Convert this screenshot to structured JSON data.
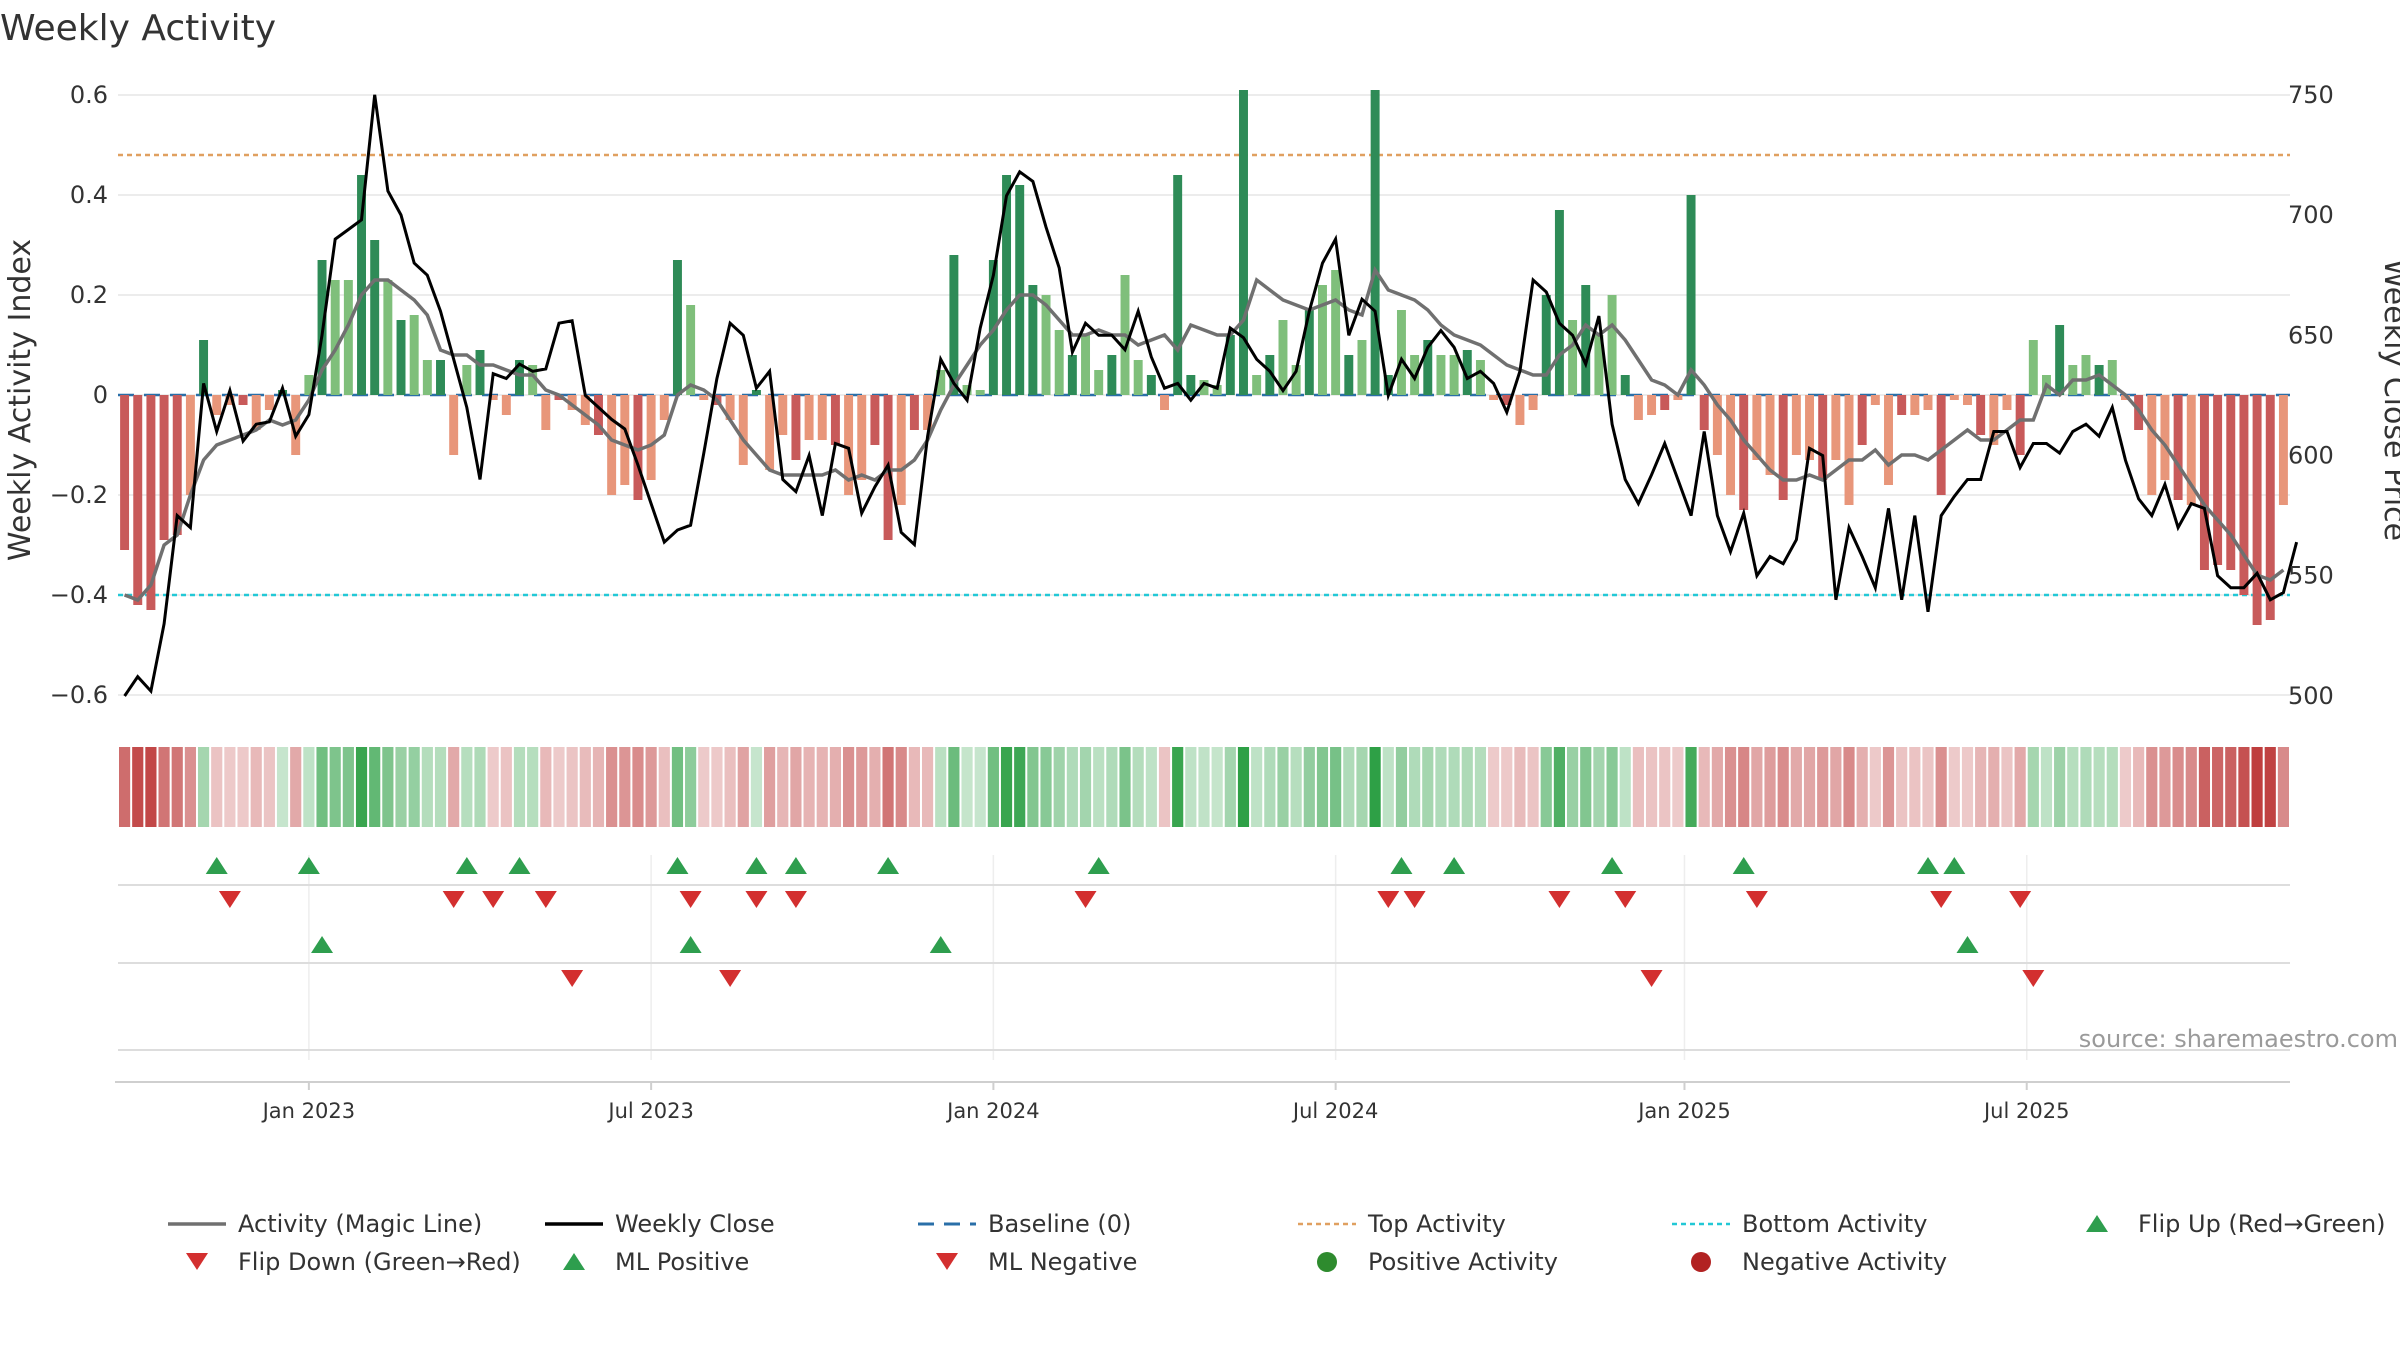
{
  "chart_data": {
    "type": "bar",
    "title": "Weekly Activity",
    "ylabel_left": "Weekly Activity Index",
    "ylabel_right": "Weekly Close Price",
    "source": "source: sharemaestro.com",
    "x_start": "2022-09-12",
    "x_end": "2025-10-13",
    "ylim_left": [
      -0.65,
      0.61
    ],
    "ylim_right": [
      490,
      752
    ],
    "yticks_left": [
      {
        "value": 0.6,
        "label": "0.6"
      },
      {
        "value": 0.4,
        "label": "0.4"
      },
      {
        "value": 0.2,
        "label": "0.2"
      },
      {
        "value": 0,
        "label": "0"
      },
      {
        "value": -0.2,
        "label": "−0.2"
      },
      {
        "value": -0.4,
        "label": "−0.4"
      },
      {
        "value": -0.6,
        "label": "−0.6"
      }
    ],
    "yticks_right": [
      {
        "value": 750,
        "label": "750"
      },
      {
        "value": 700,
        "label": "700"
      },
      {
        "value": 650,
        "label": "650"
      },
      {
        "value": 600,
        "label": "600"
      },
      {
        "value": 550,
        "label": "550"
      },
      {
        "value": 500,
        "label": "500"
      }
    ],
    "xticks": [
      {
        "week": 14.5,
        "label": "Jan 2023"
      },
      {
        "week": 40.5,
        "label": "Jul 2023"
      },
      {
        "week": 66.5,
        "label": "Jan 2024"
      },
      {
        "week": 92.5,
        "label": "Jul 2024"
      },
      {
        "week": 119,
        "label": "Jan 2025"
      },
      {
        "week": 145,
        "label": "Jul 2025"
      }
    ],
    "reference_lines": {
      "baseline": 0,
      "top_activity": 0.48,
      "bottom_activity": -0.4
    },
    "activity": [
      -0.31,
      -0.42,
      -0.43,
      -0.29,
      -0.28,
      -0.2,
      0.11,
      -0.04,
      -0.02,
      -0.02,
      -0.07,
      -0.03,
      0.01,
      -0.12,
      0.04,
      0.27,
      0.23,
      0.23,
      0.44,
      0.31,
      0.23,
      0.15,
      0.16,
      0.07,
      0.07,
      -0.12,
      0.06,
      0.09,
      -0.01,
      -0.04,
      0.07,
      0.06,
      -0.07,
      -0.01,
      -0.03,
      -0.06,
      -0.08,
      -0.2,
      -0.18,
      -0.21,
      -0.17,
      -0.05,
      0.27,
      0.18,
      -0.01,
      -0.02,
      -0.05,
      -0.14,
      0.01,
      -0.15,
      -0.08,
      -0.13,
      -0.09,
      -0.09,
      -0.1,
      -0.2,
      -0.17,
      -0.1,
      -0.29,
      -0.22,
      -0.07,
      -0.07,
      0.05,
      0.28,
      0.02,
      0.01,
      0.27,
      0.44,
      0.42,
      0.22,
      0.2,
      0.13,
      0.08,
      0.12,
      0.05,
      0.08,
      0.24,
      0.07,
      0.04,
      -0.03,
      0.44,
      0.04,
      0.03,
      0.02,
      0.12,
      0.61,
      0.04,
      0.08,
      0.15,
      0.06,
      0.17,
      0.22,
      0.25,
      0.08,
      0.11,
      0.61,
      0.04,
      0.17,
      0.08,
      0.11,
      0.08,
      0.08,
      0.09,
      0.07,
      -0.01,
      -0.02,
      -0.06,
      -0.03,
      0.2,
      0.37,
      0.15,
      0.22,
      0.12,
      0.2,
      0.04,
      -0.05,
      -0.04,
      -0.03,
      -0.01,
      0.4,
      -0.07,
      -0.12,
      -0.2,
      -0.23,
      -0.13,
      -0.16,
      -0.21,
      -0.12,
      -0.13,
      -0.17,
      -0.13,
      -0.22,
      -0.1,
      -0.02,
      -0.18,
      -0.04,
      -0.04,
      -0.03,
      -0.2,
      -0.01,
      -0.02,
      -0.08,
      -0.1,
      -0.03,
      -0.12,
      0.11,
      0.04,
      0.14,
      0.06,
      0.08,
      0.06,
      0.07,
      -0.01,
      -0.07,
      -0.2,
      -0.17,
      -0.21,
      -0.22,
      -0.35,
      -0.34,
      -0.35,
      -0.4,
      -0.46,
      -0.45,
      -0.22
    ],
    "magic_line": [
      -0.4,
      -0.41,
      -0.38,
      -0.3,
      -0.28,
      -0.2,
      -0.13,
      -0.1,
      -0.09,
      -0.08,
      -0.07,
      -0.05,
      -0.06,
      -0.05,
      -0.01,
      0.05,
      0.09,
      0.14,
      0.2,
      0.23,
      0.23,
      0.21,
      0.19,
      0.16,
      0.09,
      0.08,
      0.08,
      0.06,
      0.06,
      0.05,
      0.04,
      0.04,
      0.01,
      0.0,
      -0.02,
      -0.04,
      -0.06,
      -0.09,
      -0.1,
      -0.11,
      -0.1,
      -0.08,
      0.0,
      0.02,
      0.01,
      -0.01,
      -0.05,
      -0.09,
      -0.12,
      -0.15,
      -0.16,
      -0.16,
      -0.16,
      -0.16,
      -0.15,
      -0.17,
      -0.16,
      -0.17,
      -0.15,
      -0.15,
      -0.13,
      -0.09,
      -0.03,
      0.02,
      0.06,
      0.1,
      0.13,
      0.17,
      0.2,
      0.2,
      0.18,
      0.15,
      0.12,
      0.12,
      0.13,
      0.12,
      0.12,
      0.1,
      0.11,
      0.12,
      0.09,
      0.14,
      0.13,
      0.12,
      0.12,
      0.15,
      0.23,
      0.21,
      0.19,
      0.18,
      0.17,
      0.18,
      0.19,
      0.17,
      0.16,
      0.25,
      0.21,
      0.2,
      0.19,
      0.17,
      0.14,
      0.12,
      0.11,
      0.1,
      0.08,
      0.06,
      0.05,
      0.04,
      0.04,
      0.08,
      0.1,
      0.14,
      0.12,
      0.14,
      0.11,
      0.07,
      0.03,
      0.02,
      0.0,
      0.05,
      0.02,
      -0.02,
      -0.05,
      -0.09,
      -0.12,
      -0.15,
      -0.17,
      -0.17,
      -0.16,
      -0.17,
      -0.15,
      -0.13,
      -0.13,
      -0.11,
      -0.14,
      -0.12,
      -0.12,
      -0.13,
      -0.11,
      -0.09,
      -0.07,
      -0.09,
      -0.09,
      -0.07,
      -0.05,
      -0.05,
      0.02,
      0.0,
      0.03,
      0.03,
      0.04,
      0.02,
      0.0,
      -0.03,
      -0.07,
      -0.1,
      -0.14,
      -0.18,
      -0.22,
      -0.25,
      -0.28,
      -0.32,
      -0.36,
      -0.37,
      -0.35
    ],
    "weekly_close": [
      500,
      508,
      502,
      530,
      575,
      570,
      630,
      610,
      627,
      606,
      613,
      614,
      628,
      608,
      617,
      650,
      690,
      694,
      698,
      750,
      710,
      700,
      680,
      675,
      660,
      640,
      620,
      590,
      634,
      632,
      638,
      635,
      636,
      655,
      656,
      625,
      620,
      615,
      611,
      596,
      580,
      564,
      569,
      571,
      601,
      632,
      655,
      650,
      628,
      635,
      590,
      585,
      600,
      575,
      605,
      603,
      576,
      587,
      596,
      568,
      563,
      608,
      640,
      630,
      623,
      653,
      675,
      708,
      718,
      714,
      695,
      678,
      643,
      655,
      650,
      650,
      644,
      660,
      641,
      628,
      630,
      623,
      630,
      628,
      653,
      649,
      640,
      635,
      627,
      635,
      660,
      680,
      690,
      650,
      665,
      660,
      625,
      640,
      632,
      645,
      652,
      645,
      632,
      635,
      630,
      618,
      635,
      673,
      668,
      655,
      650,
      638,
      658,
      613,
      590,
      580,
      592,
      605,
      590,
      575,
      610,
      575,
      560,
      576,
      550,
      558,
      555,
      565,
      603,
      600,
      540,
      570,
      558,
      545,
      578,
      540,
      575,
      535,
      575,
      583,
      590,
      590,
      610,
      610,
      595,
      605,
      605,
      601,
      610,
      613,
      608,
      620,
      598,
      582,
      575,
      588,
      570,
      580,
      578,
      550,
      545,
      545,
      551,
      540,
      543,
      564
    ]
  },
  "sentiment_strip_label": "Weekly activity heat strip",
  "markers": {
    "flip_up_weeks": [
      7,
      14,
      26,
      30,
      42,
      48,
      51,
      58,
      74,
      97,
      101,
      113,
      123,
      137,
      139
    ],
    "flip_down_weeks": [
      8,
      25,
      28,
      32,
      43,
      48,
      51,
      73,
      96,
      98,
      109,
      114,
      124,
      138,
      144
    ],
    "ml_positive_weeks": [
      15,
      43,
      62,
      140
    ],
    "ml_negative_weeks": [
      34,
      46,
      116,
      145
    ]
  },
  "legend": [
    {
      "key": "activity",
      "label": "Activity (Magic Line)",
      "symbol": "line",
      "color": "#707070"
    },
    {
      "key": "close",
      "label": "Weekly Close",
      "symbol": "line",
      "color": "#000000"
    },
    {
      "key": "baseline",
      "label": "Baseline (0)",
      "symbol": "dash",
      "color": "#2a6fa8"
    },
    {
      "key": "top",
      "label": "Top Activity",
      "symbol": "dot-line",
      "color": "#e0a060"
    },
    {
      "key": "bottom",
      "label": "Bottom Activity",
      "symbol": "dot-line",
      "color": "#22c8d6"
    },
    {
      "key": "flip_up",
      "label": "Flip Up (Red→Green)",
      "symbol": "tri-up",
      "color": "#2e9e4e"
    },
    {
      "key": "flip_down",
      "label": "Flip Down (Green→Red)",
      "symbol": "tri-down",
      "color": "#d32f2f"
    },
    {
      "key": "ml_pos",
      "label": "ML Positive",
      "symbol": "tri-up",
      "color": "#2e9e4e"
    },
    {
      "key": "ml_neg",
      "label": "ML Negative",
      "symbol": "tri-down",
      "color": "#d32f2f"
    },
    {
      "key": "pos_act",
      "label": "Positive Activity",
      "symbol": "circle",
      "color": "#2e8b2e"
    },
    {
      "key": "neg_act",
      "label": "Negative Activity",
      "symbol": "circle",
      "color": "#b22222"
    }
  ],
  "colors": {
    "pos_strong": "#2e8b57",
    "pos_light": "#7fbf7b",
    "neg_strong": "#c85a5a",
    "neg_light": "#e8967a",
    "grid": "#e6e6e6",
    "text": "#333333"
  }
}
